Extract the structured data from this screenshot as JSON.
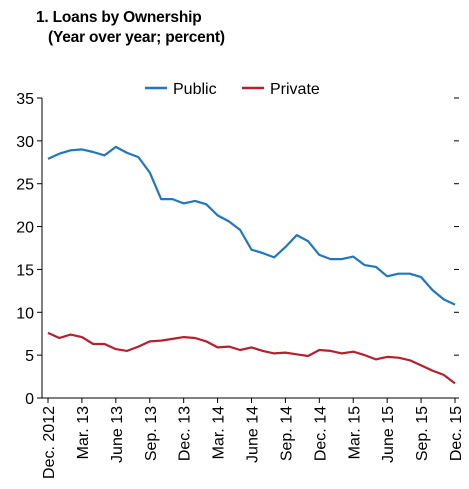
{
  "chart_data": {
    "type": "line",
    "title_line1": "1. Loans by Ownership",
    "title_line2": "(Year over year; percent)",
    "ylim": [
      0,
      35
    ],
    "yticks": [
      "0",
      "5",
      "10",
      "15",
      "20",
      "25",
      "30",
      "35"
    ],
    "ytick_values": [
      0,
      5,
      10,
      15,
      20,
      25,
      30,
      35
    ],
    "xtick_labels": [
      "Dec. 2012",
      "Mar. 13",
      "June 13",
      "Sep. 13",
      "Dec. 13",
      "Mar. 14",
      "June 14",
      "Sep. 14",
      "Dec. 14",
      "Mar. 15",
      "June 15",
      "Sep. 15",
      "Dec. 15"
    ],
    "xtick_index": [
      0,
      3,
      6,
      9,
      12,
      15,
      18,
      21,
      24,
      27,
      30,
      33,
      36
    ],
    "legend_position": "top",
    "grid": false,
    "series": [
      {
        "name": "Public",
        "color": "#1f77c4",
        "values": [
          27.9,
          28.5,
          28.9,
          29.0,
          28.7,
          28.3,
          29.3,
          28.6,
          28.1,
          26.3,
          23.2,
          23.2,
          22.7,
          23.0,
          22.6,
          21.3,
          20.6,
          19.6,
          17.3,
          16.9,
          16.4,
          17.6,
          19.0,
          18.3,
          16.7,
          16.2,
          16.2,
          16.5,
          15.5,
          15.3,
          14.2,
          14.5,
          14.5,
          14.1,
          12.6,
          11.5,
          10.9
        ]
      },
      {
        "name": "Private",
        "color": "#b5202e",
        "values": [
          7.6,
          7.0,
          7.4,
          7.1,
          6.3,
          6.3,
          5.7,
          5.5,
          6.0,
          6.6,
          6.7,
          6.9,
          7.1,
          7.0,
          6.6,
          5.9,
          6.0,
          5.6,
          5.9,
          5.5,
          5.2,
          5.3,
          5.1,
          4.9,
          5.6,
          5.5,
          5.2,
          5.4,
          5.0,
          4.5,
          4.8,
          4.7,
          4.4,
          3.8,
          3.2,
          2.7,
          1.7
        ]
      }
    ]
  }
}
